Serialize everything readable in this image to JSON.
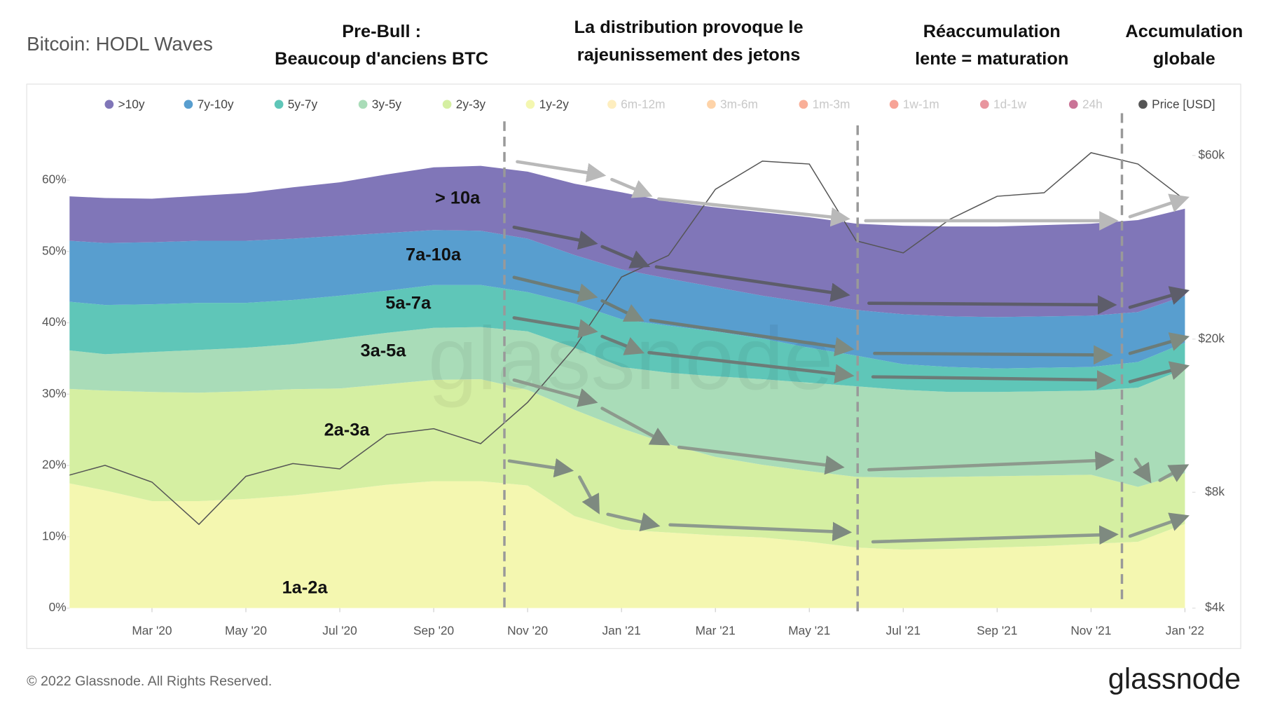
{
  "chart_data": {
    "type": "stacked_area",
    "title": "Bitcoin: HODL Waves",
    "phase_labels": [
      {
        "lines": [
          "Pre-Bull :",
          "Beaucoup d'anciens BTC"
        ]
      },
      {
        "lines": [
          "La distribution provoque le",
          "rajeunissement des jetons"
        ]
      },
      {
        "lines": [
          "Réaccumulation",
          "lente = maturation"
        ]
      },
      {
        "lines": [
          "Accumulation",
          "globale"
        ]
      }
    ],
    "band_labels": [
      "> 10a",
      "7a-10a",
      "5a-7a",
      "3a-5a",
      "2a-3a",
      "1a-2a"
    ],
    "watermark": "glassnode",
    "footer": "© 2022 Glassnode. All Rights Reserved.",
    "logo": "glassnode",
    "x": [
      "2020-01",
      "2020-02",
      "2020-03",
      "2020-04",
      "2020-05",
      "2020-06",
      "2020-07",
      "2020-08",
      "2020-09",
      "2020-10",
      "2020-11",
      "2020-12",
      "2021-01",
      "2021-02",
      "2021-03",
      "2021-04",
      "2021-05",
      "2021-06",
      "2021-07",
      "2021-08",
      "2021-09",
      "2021-10",
      "2021-11",
      "2021-12",
      "2022-01"
    ],
    "xticks": [
      {
        "value": "2020-03",
        "label": "Mar '20"
      },
      {
        "value": "2020-05",
        "label": "May '20"
      },
      {
        "value": "2020-07",
        "label": "Jul '20"
      },
      {
        "value": "2020-09",
        "label": "Sep '20"
      },
      {
        "value": "2020-11",
        "label": "Nov '20"
      },
      {
        "value": "2021-01",
        "label": "Jan '21"
      },
      {
        "value": "2021-03",
        "label": "Mar '21"
      },
      {
        "value": "2021-05",
        "label": "May '21"
      },
      {
        "value": "2021-07",
        "label": "Jul '21"
      },
      {
        "value": "2021-09",
        "label": "Sep '21"
      },
      {
        "value": "2021-11",
        "label": "Nov '21"
      },
      {
        "value": "2022-01",
        "label": "Jan '22"
      }
    ],
    "ylim": [
      0,
      69
    ],
    "yticks": [
      {
        "value": 0,
        "label": "0%"
      },
      {
        "value": 10,
        "label": "10%"
      },
      {
        "value": 20,
        "label": "20%"
      },
      {
        "value": 30,
        "label": "30%"
      },
      {
        "value": 40,
        "label": "40%"
      },
      {
        "value": 50,
        "label": "50%"
      },
      {
        "value": 60,
        "label": "60%"
      }
    ],
    "y2_log": true,
    "y2lim": [
      4000,
      76000
    ],
    "y2ticks": [
      {
        "value": 4000,
        "label": "$4k"
      },
      {
        "value": 8000,
        "label": "$8k"
      },
      {
        "value": 20000,
        "label": "$20k"
      },
      {
        "value": 60000,
        "label": "$60k"
      }
    ],
    "grid": false,
    "series": [
      {
        "name": "1y-2y",
        "color": "#f4f7b0",
        "values": [
          17.8,
          16.5,
          15.0,
          15.0,
          15.3,
          15.8,
          16.5,
          17.3,
          17.8,
          17.8,
          17.2,
          12.9,
          11.0,
          10.6,
          10.2,
          9.9,
          9.3,
          8.5,
          8.2,
          8.3,
          8.5,
          8.7,
          9.0,
          9.3,
          11.8
        ]
      },
      {
        "name": "2y-3y",
        "color": "#d5efa2",
        "values": [
          13.0,
          14.0,
          15.3,
          15.2,
          15.1,
          14.9,
          14.3,
          14.1,
          14.2,
          14.3,
          13.4,
          14.9,
          14.2,
          12.4,
          11.0,
          10.2,
          9.9,
          9.9,
          10.1,
          10.1,
          10.0,
          9.9,
          9.7,
          7.7,
          7.1
        ]
      },
      {
        "name": "3y-5y",
        "color": "#a9dcb8",
        "values": [
          5.5,
          5.1,
          5.6,
          6.0,
          6.1,
          6.3,
          7.0,
          7.2,
          7.3,
          7.3,
          8.2,
          8.7,
          8.6,
          10.0,
          11.3,
          12.0,
          12.4,
          12.7,
          12.3,
          11.9,
          11.8,
          11.8,
          11.8,
          13.9,
          14.7
        ]
      },
      {
        "name": "5y-7y",
        "color": "#5fc6b8",
        "values": [
          6.8,
          6.9,
          6.7,
          6.6,
          6.3,
          6.2,
          6.0,
          5.9,
          6.0,
          5.9,
          5.5,
          6.2,
          6.7,
          6.6,
          6.3,
          5.7,
          4.9,
          4.3,
          3.6,
          3.5,
          3.3,
          3.3,
          3.3,
          3.6,
          3.6
        ]
      },
      {
        "name": "7y-10y",
        "color": "#589ecf",
        "values": [
          8.5,
          8.7,
          8.7,
          8.7,
          8.7,
          8.6,
          8.4,
          8.1,
          7.7,
          7.6,
          7.5,
          6.8,
          7.0,
          6.6,
          6.2,
          6.0,
          6.3,
          6.4,
          7.0,
          7.1,
          7.2,
          7.2,
          7.2,
          7.0,
          6.6
        ]
      },
      {
        "name": ">10y",
        "color": "#8076b8",
        "values": [
          6.2,
          6.3,
          6.1,
          6.3,
          6.7,
          7.2,
          7.5,
          8.2,
          8.8,
          9.1,
          9.4,
          10.0,
          10.8,
          10.8,
          11.2,
          11.7,
          12.0,
          12.1,
          12.4,
          12.6,
          12.7,
          12.8,
          12.9,
          12.9,
          12.2
        ]
      },
      {
        "name": "6m-12m",
        "color": "#fee08b",
        "visible": false
      },
      {
        "name": "3m-6m",
        "color": "#fdae61",
        "visible": false
      },
      {
        "name": "1m-3m",
        "color": "#f46d43",
        "visible": false
      },
      {
        "name": "1w-1m",
        "color": "#f0573f",
        "visible": false
      },
      {
        "name": "1d-1w",
        "color": "#d53e4f",
        "visible": false
      },
      {
        "name": "24h",
        "color": "#9e0142",
        "visible": false
      },
      {
        "name": "Price [USD]",
        "color": "#555555",
        "axis": "y2",
        "values": [
          8700,
          9400,
          8500,
          6600,
          8800,
          9500,
          9200,
          11300,
          11700,
          10700,
          13700,
          19000,
          29000,
          33000,
          49000,
          58000,
          57000,
          36000,
          33500,
          41000,
          47000,
          48000,
          61000,
          57000,
          46000
        ]
      }
    ],
    "legend_order": [
      5,
      4,
      3,
      2,
      1,
      0,
      6,
      7,
      8,
      9,
      10,
      11,
      12
    ]
  }
}
